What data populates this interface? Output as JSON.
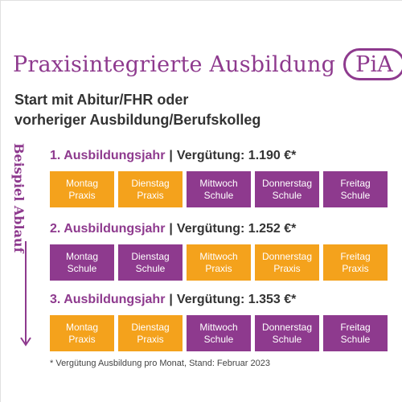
{
  "header": {
    "title": "Praxisintegrierte Ausbildung",
    "brand_badge": "PiA",
    "subtitle_line1": "Start mit Abitur/FHR oder",
    "subtitle_line2": "vorheriger Ausbildung/Berufskolleg"
  },
  "side_label": "Beispiel Ablauf",
  "years": [
    {
      "name": "1. Ausbildungsjahr",
      "separator": "|",
      "pay": "Vergütung: 1.190 €*",
      "days": [
        {
          "day": "Montag",
          "type": "Praxis",
          "color": "#f4a21c"
        },
        {
          "day": "Dienstag",
          "type": "Praxis",
          "color": "#f4a21c"
        },
        {
          "day": "Mittwoch",
          "type": "Schule",
          "color": "#8e3a8e"
        },
        {
          "day": "Donnerstag",
          "type": "Schule",
          "color": "#8e3a8e"
        },
        {
          "day": "Freitag",
          "type": "Schule",
          "color": "#8e3a8e"
        }
      ]
    },
    {
      "name": "2. Ausbildungsjahr",
      "separator": "|",
      "pay": "Vergütung: 1.252 €*",
      "days": [
        {
          "day": "Montag",
          "type": "Schule",
          "color": "#8e3a8e"
        },
        {
          "day": "Dienstag",
          "type": "Schule",
          "color": "#8e3a8e"
        },
        {
          "day": "Mittwoch",
          "type": "Praxis",
          "color": "#f4a21c"
        },
        {
          "day": "Donnerstag",
          "type": "Praxis",
          "color": "#f4a21c"
        },
        {
          "day": "Freitag",
          "type": "Praxis",
          "color": "#f4a21c"
        }
      ]
    },
    {
      "name": "3. Ausbildungsjahr",
      "separator": "|",
      "pay": "Vergütung: 1.353 €*",
      "days": [
        {
          "day": "Montag",
          "type": "Praxis",
          "color": "#f4a21c"
        },
        {
          "day": "Dienstag",
          "type": "Praxis",
          "color": "#f4a21c"
        },
        {
          "day": "Mittwoch",
          "type": "Schule",
          "color": "#8e3a8e"
        },
        {
          "day": "Donnerstag",
          "type": "Schule",
          "color": "#8e3a8e"
        },
        {
          "day": "Freitag",
          "type": "Schule",
          "color": "#8e3a8e"
        }
      ]
    }
  ],
  "footnote": "* Vergütung Ausbildung pro Monat, Stand: Februar 2023",
  "colors": {
    "accent_purple": "#8e3a8e",
    "accent_orange": "#f4a21c",
    "text_dark": "#333333"
  },
  "icons": {
    "timeline_arrow": "arrow-down-icon"
  }
}
